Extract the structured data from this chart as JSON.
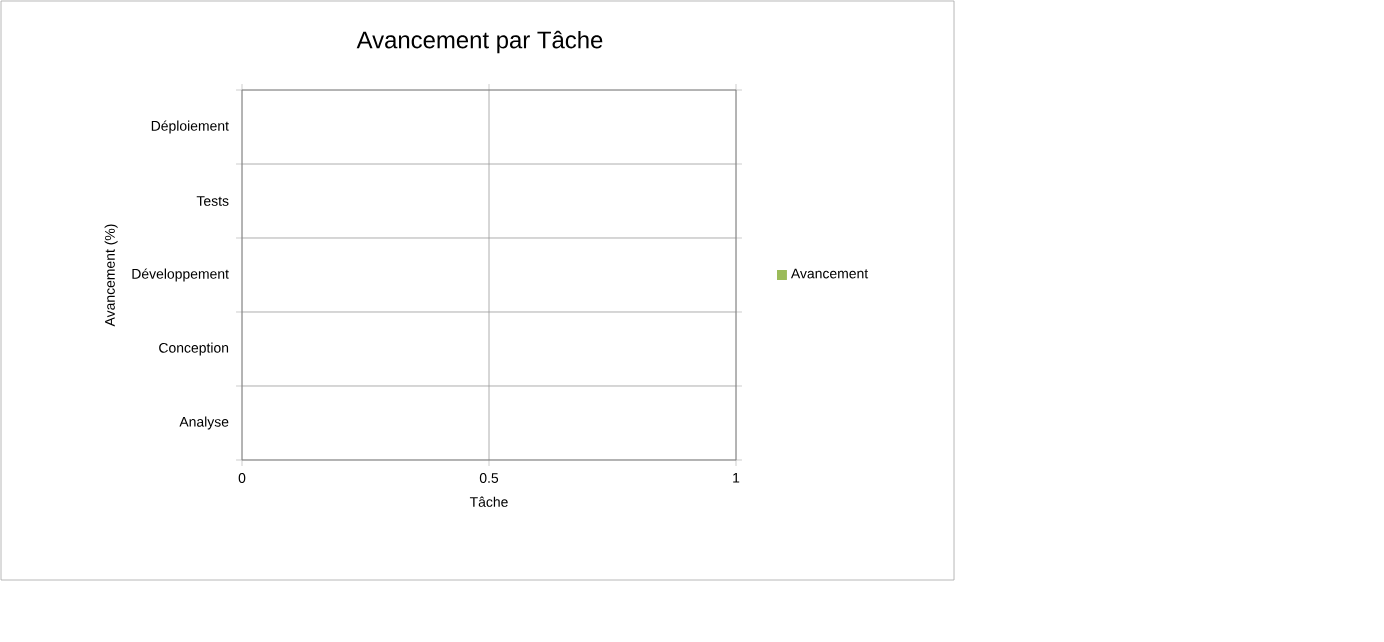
{
  "chart_data": {
    "type": "bar",
    "orientation": "horizontal",
    "title": "Avancement par Tâche",
    "xlabel": "Tâche",
    "ylabel": "Avancement (%)",
    "categories": [
      "Déploiement",
      "Tests",
      "Développement",
      "Conception",
      "Analyse"
    ],
    "series": [
      {
        "name": "Avancement",
        "color": "#9bbb59",
        "values": [
          0,
          0,
          0,
          0,
          0
        ]
      }
    ],
    "xlim": [
      0,
      1
    ],
    "xticks": [
      0,
      0.5,
      1
    ],
    "grid": true,
    "legend": "right"
  }
}
